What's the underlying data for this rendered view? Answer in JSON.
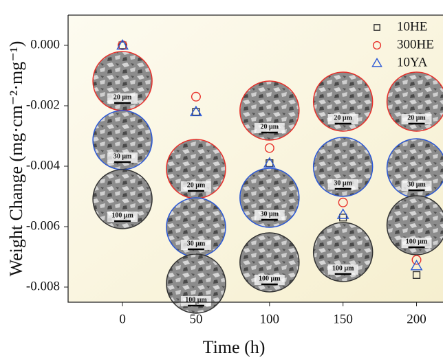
{
  "chart_data": {
    "type": "scatter",
    "xlabel": "Time (h)",
    "ylabel": "Weight Change (mg·cm⁻²·mg⁻¹)",
    "xlim": [
      -37,
      218
    ],
    "xticks": [
      0,
      50,
      100,
      150,
      200
    ],
    "ylim": [
      -0.0085,
      0.001
    ],
    "yticks": [
      {
        "value": 0,
        "label": "0.000"
      },
      {
        "value": -0.002,
        "label": "-0.002"
      },
      {
        "value": -0.004,
        "label": "-0.004"
      },
      {
        "value": -0.006,
        "label": "-0.006"
      },
      {
        "value": -0.008,
        "label": "-0.008"
      }
    ],
    "legend": "upper right",
    "series": [
      {
        "name": "10HE",
        "marker": "square",
        "color": "#333333",
        "x": [
          0,
          50,
          100,
          150,
          200
        ],
        "values": [
          0,
          -0.0022,
          -0.0039,
          -0.0057,
          -0.0076
        ]
      },
      {
        "name": "300HE",
        "marker": "circle",
        "color": "#e8302a",
        "x": [
          0,
          50,
          100,
          150,
          200
        ],
        "values": [
          0,
          -0.0017,
          -0.0034,
          -0.0052,
          -0.0071
        ]
      },
      {
        "name": "10YA",
        "marker": "triangle",
        "color": "#2a57d6",
        "x": [
          0,
          50,
          100,
          150,
          200
        ],
        "values": [
          0,
          -0.0022,
          -0.0039,
          -0.0056,
          -0.0073
        ]
      }
    ],
    "insets": [
      {
        "x": 0,
        "scale_bars": [
          "20 μm",
          "30 μm",
          "100 μm"
        ]
      },
      {
        "x": 50,
        "scale_bars": [
          "20 μm",
          "30 μm",
          "100 μm"
        ]
      },
      {
        "x": 100,
        "scale_bars": [
          "20 μm",
          "30 μm",
          "100 μm"
        ]
      },
      {
        "x": 150,
        "scale_bars": [
          "20 μm",
          "30 μm",
          "100 μm"
        ]
      },
      {
        "x": 200,
        "scale_bars": [
          "20 μm",
          "30 μm",
          "100 μm"
        ]
      }
    ]
  }
}
